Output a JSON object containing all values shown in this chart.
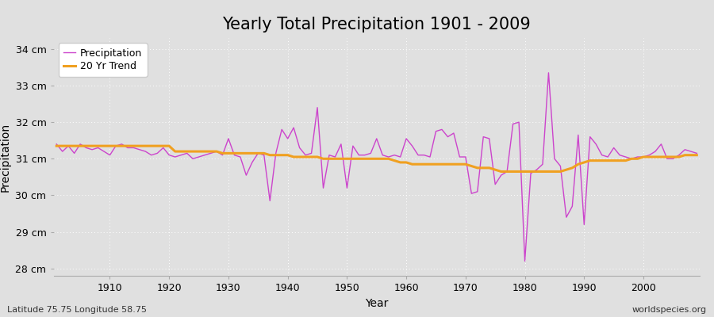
{
  "title": "Yearly Total Precipitation 1901 - 2009",
  "xlabel": "Year",
  "ylabel": "Precipitation",
  "subtitle_left": "Latitude 75.75 Longitude 58.75",
  "subtitle_right": "worldspecies.org",
  "years": [
    1901,
    1902,
    1903,
    1904,
    1905,
    1906,
    1907,
    1908,
    1909,
    1910,
    1911,
    1912,
    1913,
    1914,
    1915,
    1916,
    1917,
    1918,
    1919,
    1920,
    1921,
    1922,
    1923,
    1924,
    1925,
    1926,
    1927,
    1928,
    1929,
    1930,
    1931,
    1932,
    1933,
    1934,
    1935,
    1936,
    1937,
    1938,
    1939,
    1940,
    1941,
    1942,
    1943,
    1944,
    1945,
    1946,
    1947,
    1948,
    1949,
    1950,
    1951,
    1952,
    1953,
    1954,
    1955,
    1956,
    1957,
    1958,
    1959,
    1960,
    1961,
    1962,
    1963,
    1964,
    1965,
    1966,
    1967,
    1968,
    1969,
    1970,
    1971,
    1972,
    1973,
    1974,
    1975,
    1976,
    1977,
    1978,
    1979,
    1980,
    1981,
    1982,
    1983,
    1984,
    1985,
    1986,
    1987,
    1988,
    1989,
    1990,
    1991,
    1992,
    1993,
    1994,
    1995,
    1996,
    1997,
    1998,
    1999,
    2000,
    2001,
    2002,
    2003,
    2004,
    2005,
    2006,
    2007,
    2008,
    2009
  ],
  "precip": [
    31.4,
    31.2,
    31.35,
    31.15,
    31.4,
    31.3,
    31.25,
    31.3,
    31.2,
    31.1,
    31.35,
    31.4,
    31.3,
    31.3,
    31.25,
    31.2,
    31.1,
    31.15,
    31.3,
    31.1,
    31.05,
    31.1,
    31.15,
    31.0,
    31.05,
    31.1,
    31.15,
    31.2,
    31.1,
    31.55,
    31.1,
    31.05,
    30.55,
    30.9,
    31.15,
    31.1,
    29.85,
    31.15,
    31.8,
    31.55,
    31.85,
    31.3,
    31.1,
    31.15,
    32.4,
    30.2,
    31.1,
    31.05,
    31.4,
    30.2,
    31.35,
    31.1,
    31.1,
    31.15,
    31.55,
    31.1,
    31.05,
    31.1,
    31.05,
    31.55,
    31.35,
    31.1,
    31.1,
    31.05,
    31.75,
    31.8,
    31.6,
    31.7,
    31.05,
    31.05,
    30.05,
    30.1,
    31.6,
    31.55,
    30.3,
    30.55,
    30.65,
    31.95,
    32.0,
    28.2,
    30.6,
    30.7,
    30.85,
    33.35,
    31.0,
    30.8,
    29.4,
    29.7,
    31.65,
    29.2,
    31.6,
    31.4,
    31.1,
    31.05,
    31.3,
    31.1,
    31.05,
    31.0,
    31.05,
    31.05,
    31.1,
    31.2,
    31.4,
    31.0,
    31.0,
    31.1,
    31.25,
    31.2,
    31.15
  ],
  "trend": [
    31.35,
    31.35,
    31.35,
    31.35,
    31.35,
    31.35,
    31.35,
    31.35,
    31.35,
    31.35,
    31.35,
    31.35,
    31.35,
    31.35,
    31.35,
    31.35,
    31.35,
    31.35,
    31.35,
    31.35,
    31.2,
    31.2,
    31.2,
    31.2,
    31.2,
    31.2,
    31.2,
    31.2,
    31.15,
    31.15,
    31.15,
    31.15,
    31.15,
    31.15,
    31.15,
    31.15,
    31.1,
    31.1,
    31.1,
    31.1,
    31.05,
    31.05,
    31.05,
    31.05,
    31.05,
    31.0,
    31.0,
    31.0,
    31.0,
    31.0,
    31.0,
    31.0,
    31.0,
    31.0,
    31.0,
    31.0,
    31.0,
    30.95,
    30.9,
    30.9,
    30.85,
    30.85,
    30.85,
    30.85,
    30.85,
    30.85,
    30.85,
    30.85,
    30.85,
    30.85,
    30.8,
    30.75,
    30.75,
    30.75,
    30.7,
    30.65,
    30.65,
    30.65,
    30.65,
    30.65,
    30.65,
    30.65,
    30.65,
    30.65,
    30.65,
    30.65,
    30.7,
    30.75,
    30.85,
    30.9,
    30.95,
    30.95,
    30.95,
    30.95,
    30.95,
    30.95,
    30.95,
    31.0,
    31.0,
    31.05,
    31.05,
    31.05,
    31.05,
    31.05,
    31.05,
    31.05,
    31.1,
    31.1,
    31.1
  ],
  "precip_color": "#cc44cc",
  "trend_color": "#f0a020",
  "bg_color": "#e0e0e0",
  "plot_bg_color": "#e0e0e0",
  "grid_color": "#ffffff",
  "ylim": [
    27.8,
    34.3
  ],
  "yticks": [
    28,
    29,
    30,
    31,
    32,
    33,
    34
  ],
  "ytick_labels": [
    "28 cm",
    "29 cm",
    "30 cm",
    "31 cm",
    "32 cm",
    "33 cm",
    "34 cm"
  ],
  "xticks": [
    1910,
    1920,
    1930,
    1940,
    1950,
    1960,
    1970,
    1980,
    1990,
    2000
  ],
  "title_fontsize": 15,
  "axis_label_fontsize": 10,
  "tick_fontsize": 9,
  "legend_fontsize": 9
}
